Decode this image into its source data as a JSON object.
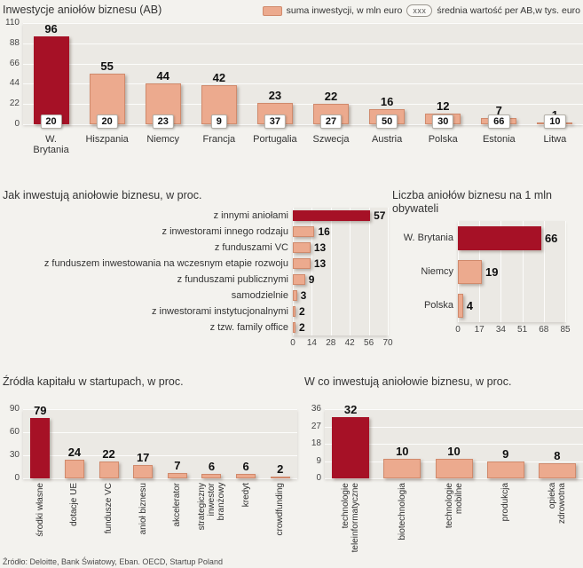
{
  "page": {
    "footer_source": "Źródło: Deloitte, Bank Światowy, Eban. OECD, Startup Poland"
  },
  "colors": {
    "highlight": "#a61126",
    "bar_fill": "#ecaa8e",
    "bar_border": "#d08a6c",
    "plot_bg": "#ebe9e4",
    "page_bg": "#f3f2ee"
  },
  "chart_data": [
    {
      "id": "inwestycje-aniolow-biznesu",
      "type": "bar",
      "title": "Inwestycje aniołów biznesu (AB)",
      "legend_position": "top-right",
      "grid": true,
      "legend": [
        {
          "marker": "bar-swatch",
          "label": "suma inwestycji, w mln euro"
        },
        {
          "marker": "value-box",
          "box_text": "xxx",
          "label": "średnia wartość per AB,w tys. euro"
        }
      ],
      "categories": [
        "W.\nBrytania",
        "Hiszpania",
        "Niemcy",
        "Francja",
        "Portugalia",
        "Szwecja",
        "Austria",
        "Polska",
        "Estonia",
        "Litwa"
      ],
      "values": [
        96,
        55,
        44,
        42,
        23,
        22,
        16,
        12,
        7,
        1
      ],
      "avg_per_ab": [
        20,
        20,
        23,
        9,
        37,
        27,
        50,
        30,
        66,
        10
      ],
      "ylim": [
        0,
        110
      ],
      "yticks": [
        110,
        88,
        66,
        44,
        22,
        0
      ],
      "highlight_index": 0
    },
    {
      "id": "jak-inwestuja-aniolowie-biznesu",
      "type": "bar-horizontal",
      "title": "Jak inwestują aniołowie biznesu, w proc.",
      "grid": true,
      "categories": [
        "z innymi aniołami",
        "z inwestorami innego rodzaju",
        "z funduszami VC",
        "z funduszem inwestowania na wczesnym etapie rozwoju",
        "z funduszami publicznymi",
        "samodzielnie",
        "z inwestorami instytucjonalnymi",
        "z tzw. family office"
      ],
      "values": [
        57,
        16,
        13,
        13,
        9,
        3,
        2,
        2
      ],
      "xlim": [
        0,
        70
      ],
      "xticks": [
        0,
        14,
        28,
        42,
        56,
        70
      ],
      "highlight_index": 0
    },
    {
      "id": "liczba-aniolow-biznesu-na-1-mln-obywateli",
      "type": "bar-horizontal",
      "title": "Liczba aniołów biznesu na 1 mln obywateli",
      "grid": true,
      "categories": [
        "W. Brytania",
        "Niemcy",
        "Polska"
      ],
      "values": [
        66,
        19,
        4
      ],
      "xlim": [
        0,
        85
      ],
      "xticks": [
        0,
        17,
        34,
        51,
        68,
        85
      ],
      "highlight_index": 0
    },
    {
      "id": "zrodla-kapitalu-w-startupach",
      "type": "bar",
      "title": "Źródła kapitału w startupach, w proc.",
      "grid": true,
      "categories": [
        "środki własne",
        "dotacje UE",
        "fundusze VC",
        "anioł biznesu",
        "akcelerator",
        "strategiczny\ninwestor\nbranżowy",
        "kredyt",
        "crowdfunding"
      ],
      "values": [
        79,
        24,
        22,
        17,
        7,
        6,
        6,
        2
      ],
      "ylim": [
        0,
        90
      ],
      "yticks": [
        90,
        60,
        30,
        0
      ],
      "highlight_index": 0
    },
    {
      "id": "w-co-inwestuja-aniolowie-biznesu",
      "type": "bar",
      "title": "W co inwestują aniołowie biznesu, w proc.",
      "grid": true,
      "categories": [
        "technologie\nteleinformatyczne",
        "biotechnologia",
        "technologie\nmobilne",
        "produkcja",
        "opieka\nzdrowotna"
      ],
      "values": [
        32,
        10,
        10,
        9,
        8
      ],
      "ylim": [
        0,
        36
      ],
      "yticks": [
        36,
        27,
        18,
        9,
        0
      ],
      "highlight_index": 0
    }
  ]
}
